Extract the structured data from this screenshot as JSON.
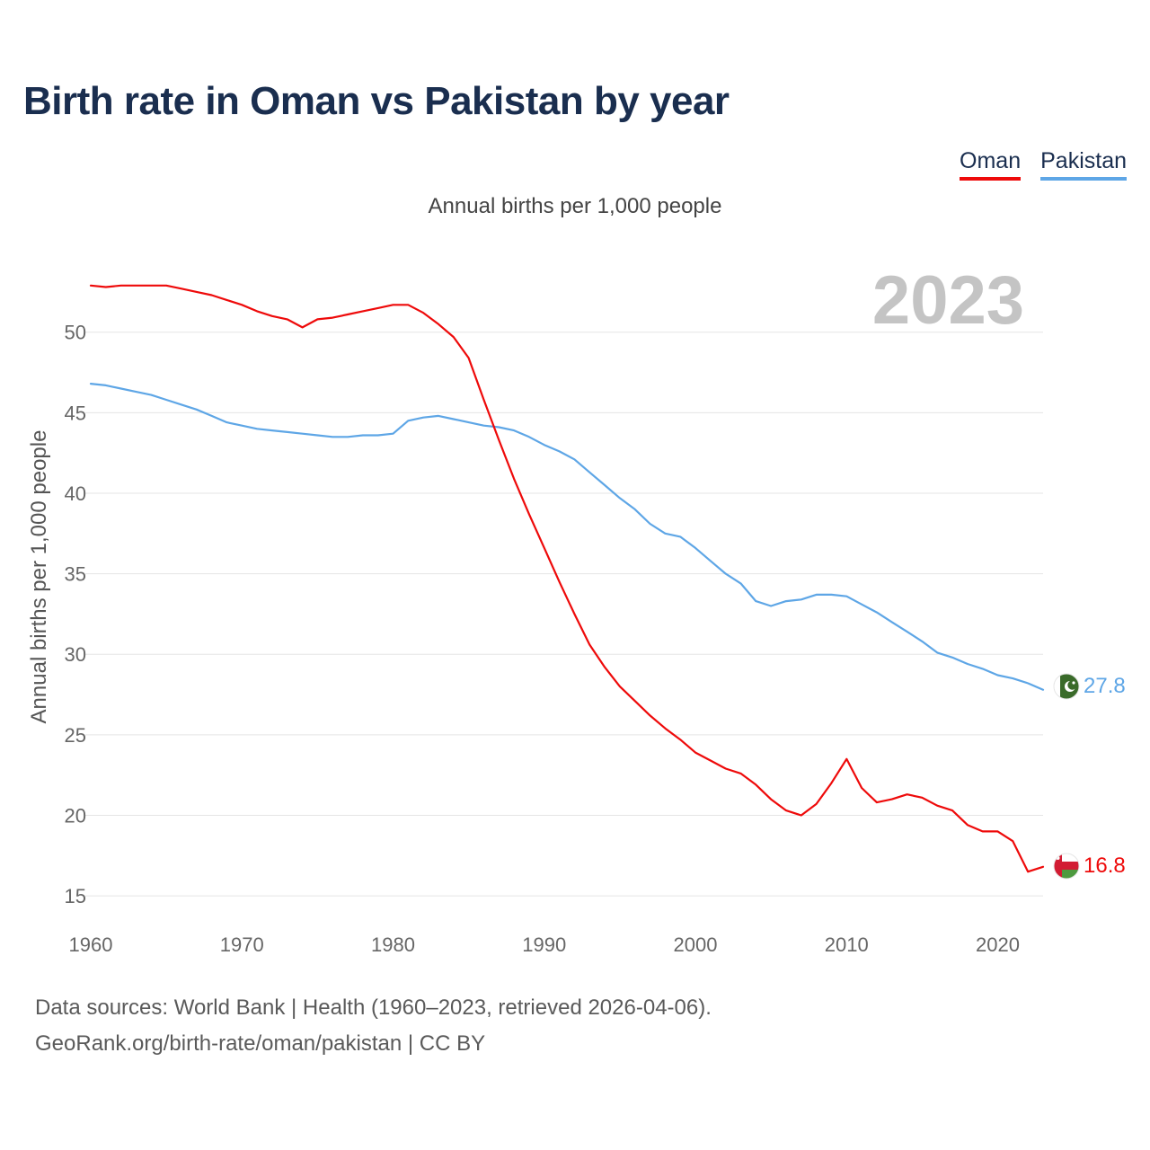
{
  "title": "Birth rate in Oman vs Pakistan by year",
  "subtitle": "Annual births per 1,000 people",
  "legend": {
    "oman": "Oman",
    "pakistan": "Pakistan"
  },
  "source_line1": "Data sources: World Bank | Health (1960–2023, retrieved 2026-04-06).",
  "source_line2": "GeoRank.org/birth-rate/oman/pakistan | CC BY",
  "chart_data": {
    "type": "line",
    "title": "Birth rate in Oman vs Pakistan by year",
    "ylabel": "Annual births per 1,000 people",
    "xlabel": "",
    "xlim": [
      1960,
      2023
    ],
    "ylim": [
      13.5,
      53.5
    ],
    "x_ticks": [
      1960,
      1970,
      1980,
      1990,
      2000,
      2010,
      2020
    ],
    "y_ticks": [
      15,
      20,
      25,
      30,
      35,
      40,
      45,
      50
    ],
    "grid": true,
    "current_year_label": "2023",
    "end_labels": [
      "27.8",
      "16.8"
    ],
    "x": [
      1960,
      1961,
      1962,
      1963,
      1964,
      1965,
      1966,
      1967,
      1968,
      1969,
      1970,
      1971,
      1972,
      1973,
      1974,
      1975,
      1976,
      1977,
      1978,
      1979,
      1980,
      1981,
      1982,
      1983,
      1984,
      1985,
      1986,
      1987,
      1988,
      1989,
      1990,
      1991,
      1992,
      1993,
      1994,
      1995,
      1996,
      1997,
      1998,
      1999,
      2000,
      2001,
      2002,
      2003,
      2004,
      2005,
      2006,
      2007,
      2008,
      2009,
      2010,
      2011,
      2012,
      2013,
      2014,
      2015,
      2016,
      2017,
      2018,
      2019,
      2020,
      2021,
      2022,
      2023
    ],
    "series": [
      {
        "name": "Oman",
        "color": "#ee0a0a",
        "values": [
          52.9,
          52.8,
          52.9,
          52.9,
          52.9,
          52.9,
          52.7,
          52.5,
          52.3,
          52.0,
          51.7,
          51.3,
          51.0,
          50.8,
          50.3,
          50.8,
          50.9,
          51.1,
          51.3,
          51.5,
          51.7,
          51.7,
          51.2,
          50.5,
          49.7,
          48.4,
          45.8,
          43.3,
          40.9,
          38.7,
          36.6,
          34.5,
          32.5,
          30.6,
          29.2,
          28.0,
          27.1,
          26.2,
          25.4,
          24.7,
          23.9,
          23.4,
          22.9,
          22.6,
          21.9,
          21.0,
          20.3,
          20.0,
          20.7,
          22.0,
          23.5,
          21.7,
          20.8,
          21.0,
          21.3,
          21.1,
          20.6,
          20.3,
          19.4,
          19.0,
          19.0,
          18.4,
          16.5,
          16.8
        ]
      },
      {
        "name": "Pakistan",
        "color": "#5ea6e6",
        "values": [
          46.8,
          46.7,
          46.5,
          46.3,
          46.1,
          45.8,
          45.5,
          45.2,
          44.8,
          44.4,
          44.2,
          44.0,
          43.9,
          43.8,
          43.7,
          43.6,
          43.5,
          43.5,
          43.6,
          43.6,
          43.7,
          44.5,
          44.7,
          44.8,
          44.6,
          44.4,
          44.2,
          44.1,
          43.9,
          43.5,
          43.0,
          42.6,
          42.1,
          41.3,
          40.5,
          39.7,
          39.0,
          38.1,
          37.5,
          37.3,
          36.6,
          35.8,
          35.0,
          34.4,
          33.3,
          33.0,
          33.3,
          33.4,
          33.7,
          33.7,
          33.6,
          33.1,
          32.6,
          32.0,
          31.4,
          30.8,
          30.1,
          29.8,
          29.4,
          29.1,
          28.7,
          28.5,
          28.2,
          27.8
        ]
      }
    ]
  }
}
